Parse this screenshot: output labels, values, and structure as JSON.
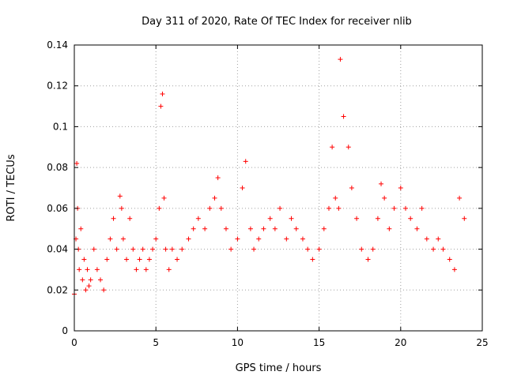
{
  "chart_data": {
    "type": "scatter",
    "title": "Day 311 of 2020, Rate Of TEC Index for receiver nlib",
    "xlabel": "GPS time / hours",
    "ylabel": "ROTI / TECUs",
    "xlim": [
      0,
      25
    ],
    "ylim": [
      0,
      0.14
    ],
    "xticks": [
      0,
      5,
      10,
      15,
      20,
      25
    ],
    "yticks": [
      0,
      0.02,
      0.04,
      0.06,
      0.08,
      0.1,
      0.12,
      0.14
    ],
    "xtick_labels": [
      "0",
      "5",
      "10",
      "15",
      "20",
      "25"
    ],
    "ytick_labels": [
      "0",
      "0.02",
      "0.04",
      "0.06",
      "0.08",
      "0.1",
      "0.12",
      "0.14"
    ],
    "grid": true,
    "marker": "+",
    "marker_color": "#ff0000",
    "series": [
      {
        "name": "ROTI",
        "x": [
          0.0,
          0.1,
          0.15,
          0.2,
          0.25,
          0.3,
          0.4,
          0.5,
          0.6,
          0.7,
          0.8,
          0.9,
          1.0,
          1.2,
          1.4,
          1.6,
          1.8,
          2.0,
          2.2,
          2.4,
          2.6,
          2.8,
          2.9,
          3.0,
          3.2,
          3.4,
          3.6,
          3.8,
          4.0,
          4.2,
          4.4,
          4.6,
          4.8,
          5.0,
          5.2,
          5.3,
          5.4,
          5.5,
          5.6,
          5.8,
          6.0,
          6.3,
          6.6,
          7.0,
          7.3,
          7.6,
          8.0,
          8.3,
          8.6,
          8.8,
          9.0,
          9.3,
          9.6,
          10.0,
          10.3,
          10.5,
          10.8,
          11.0,
          11.3,
          11.6,
          12.0,
          12.3,
          12.6,
          13.0,
          13.3,
          13.6,
          14.0,
          14.3,
          14.6,
          15.0,
          15.3,
          15.6,
          15.8,
          16.0,
          16.2,
          16.3,
          16.5,
          16.8,
          17.0,
          17.3,
          17.6,
          18.0,
          18.3,
          18.6,
          18.8,
          19.0,
          19.3,
          19.6,
          20.0,
          20.3,
          20.6,
          21.0,
          21.3,
          21.6,
          22.0,
          22.3,
          22.6,
          23.0,
          23.3,
          23.6,
          23.9
        ],
        "y": [
          0.018,
          0.045,
          0.082,
          0.06,
          0.04,
          0.03,
          0.05,
          0.025,
          0.035,
          0.02,
          0.03,
          0.022,
          0.025,
          0.04,
          0.03,
          0.025,
          0.02,
          0.035,
          0.045,
          0.055,
          0.04,
          0.066,
          0.06,
          0.045,
          0.035,
          0.055,
          0.04,
          0.03,
          0.035,
          0.04,
          0.03,
          0.035,
          0.04,
          0.045,
          0.06,
          0.11,
          0.116,
          0.065,
          0.04,
          0.03,
          0.04,
          0.035,
          0.04,
          0.045,
          0.05,
          0.055,
          0.05,
          0.06,
          0.065,
          0.075,
          0.06,
          0.05,
          0.04,
          0.045,
          0.07,
          0.083,
          0.05,
          0.04,
          0.045,
          0.05,
          0.055,
          0.05,
          0.06,
          0.045,
          0.055,
          0.05,
          0.045,
          0.04,
          0.035,
          0.04,
          0.05,
          0.06,
          0.09,
          0.065,
          0.06,
          0.133,
          0.105,
          0.09,
          0.07,
          0.055,
          0.04,
          0.035,
          0.04,
          0.055,
          0.072,
          0.065,
          0.05,
          0.06,
          0.07,
          0.06,
          0.055,
          0.05,
          0.06,
          0.045,
          0.04,
          0.045,
          0.04,
          0.035,
          0.03,
          0.065,
          0.055
        ]
      }
    ]
  }
}
